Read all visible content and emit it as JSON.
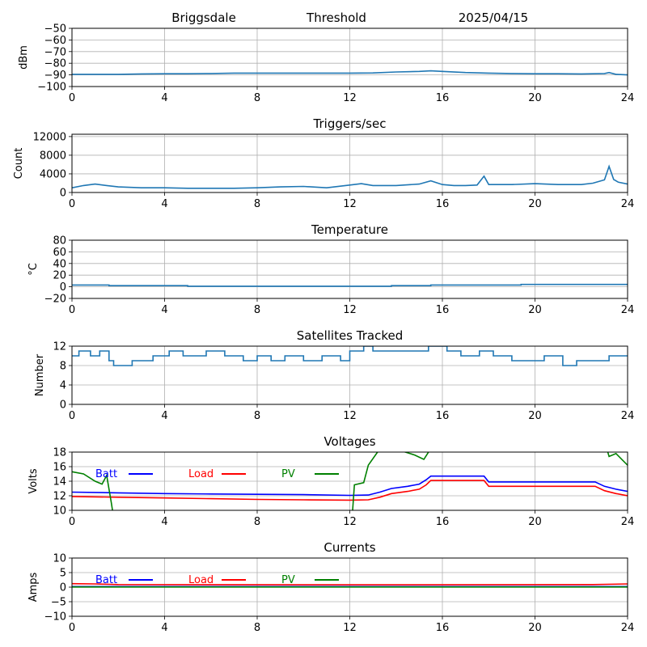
{
  "header": {
    "station": "Briggsdale",
    "label": "Threshold",
    "date": "2025/04/15"
  },
  "chart_data": [
    {
      "type": "line",
      "title": "",
      "ylabel": "dBm",
      "xlim": [
        0,
        24
      ],
      "ylim": [
        -100,
        -50
      ],
      "xticks": [
        0,
        4,
        8,
        12,
        16,
        20,
        24
      ],
      "yticks": [
        -100,
        -90,
        -80,
        -70,
        -60,
        -50
      ],
      "grid": true,
      "series": [
        {
          "color": "#1f77b4",
          "x": [
            0,
            1,
            2,
            3,
            4,
            5,
            6,
            7,
            8,
            9,
            10,
            11,
            12,
            13,
            14,
            15,
            15.5,
            16,
            17,
            18,
            19,
            20,
            21,
            22,
            22.5,
            23,
            23.2,
            23.5,
            24
          ],
          "y": [
            -89.5,
            -89.5,
            -89.5,
            -89.2,
            -89,
            -89,
            -88.8,
            -88.5,
            -88.5,
            -88.5,
            -88.5,
            -88.5,
            -88.5,
            -88.3,
            -87.5,
            -87,
            -86.5,
            -87,
            -88,
            -88.5,
            -88.8,
            -89,
            -89,
            -89.2,
            -89,
            -88.8,
            -88,
            -89.5,
            -90
          ]
        }
      ]
    },
    {
      "type": "line",
      "title": "Triggers/sec",
      "ylabel": "Count",
      "xlim": [
        0,
        24
      ],
      "ylim": [
        0,
        12500
      ],
      "xticks": [
        0,
        4,
        8,
        12,
        16,
        20,
        24
      ],
      "yticks": [
        0,
        4000,
        8000,
        12000
      ],
      "grid": true,
      "series": [
        {
          "color": "#1f77b4",
          "x": [
            0,
            0.5,
            1,
            1.5,
            2,
            3,
            4,
            5,
            6,
            7,
            8,
            9,
            10,
            11,
            12,
            12.5,
            13,
            14,
            15,
            15.5,
            16,
            16.5,
            17,
            17.5,
            17.8,
            18,
            19,
            20,
            21,
            22,
            22.5,
            23,
            23.2,
            23.4,
            23.6,
            24
          ],
          "y": [
            1000,
            1500,
            1800,
            1500,
            1200,
            1000,
            1000,
            900,
            900,
            900,
            1000,
            1200,
            1300,
            1000,
            1600,
            1900,
            1500,
            1500,
            1800,
            2500,
            1700,
            1500,
            1500,
            1600,
            3500,
            1700,
            1700,
            1900,
            1700,
            1700,
            2000,
            2700,
            5600,
            2800,
            2200,
            1800
          ]
        }
      ]
    },
    {
      "type": "line",
      "title": "Temperature",
      "ylabel": "°C",
      "xlim": [
        0,
        24
      ],
      "ylim": [
        -20,
        80
      ],
      "xticks": [
        0,
        4,
        8,
        12,
        16,
        20,
        24
      ],
      "yticks": [
        -20,
        0,
        20,
        40,
        60,
        80
      ],
      "grid": true,
      "series": [
        {
          "color": "#1f77b4",
          "x": [
            0,
            1.6,
            1.6,
            5,
            5,
            13.8,
            13.8,
            15.5,
            15.5,
            19.4,
            19.4,
            24
          ],
          "y": [
            3,
            3,
            2,
            2,
            1,
            1,
            2,
            2,
            3,
            3,
            4,
            4
          ]
        }
      ]
    },
    {
      "type": "line",
      "title": "Satellites Tracked",
      "ylabel": "Number",
      "xlim": [
        0,
        24
      ],
      "ylim": [
        0,
        12
      ],
      "xticks": [
        0,
        4,
        8,
        12,
        16,
        20,
        24
      ],
      "yticks": [
        0,
        4,
        8,
        12
      ],
      "grid": true,
      "series": [
        {
          "color": "#1f77b4",
          "x": [
            0,
            0.3,
            0.3,
            0.8,
            0.8,
            1.2,
            1.2,
            1.6,
            1.6,
            1.8,
            1.8,
            2.6,
            2.6,
            3.5,
            3.5,
            4.2,
            4.2,
            4.8,
            4.8,
            5.8,
            5.8,
            6.6,
            6.6,
            7.4,
            7.4,
            8,
            8,
            8.6,
            8.6,
            9.2,
            9.2,
            10,
            10,
            10.8,
            10.8,
            11.6,
            11.6,
            12,
            12,
            12.6,
            12.6,
            13,
            13,
            14,
            14,
            15.4,
            15.4,
            16.2,
            16.2,
            16.8,
            16.8,
            17.6,
            17.6,
            18.2,
            18.2,
            19,
            19,
            20.4,
            20.4,
            21.2,
            21.2,
            21.8,
            21.8,
            23.2,
            23.2,
            24
          ],
          "y": [
            10,
            10,
            11,
            11,
            10,
            10,
            11,
            11,
            9,
            9,
            8,
            8,
            9,
            9,
            10,
            10,
            11,
            11,
            10,
            10,
            11,
            11,
            10,
            10,
            9,
            9,
            10,
            10,
            9,
            9,
            10,
            10,
            9,
            9,
            10,
            10,
            9,
            9,
            11,
            11,
            12,
            12,
            11,
            11,
            11,
            11,
            12,
            12,
            11,
            11,
            10,
            10,
            11,
            11,
            10,
            10,
            9,
            9,
            10,
            10,
            8,
            8,
            9,
            9,
            10,
            10
          ]
        }
      ]
    },
    {
      "type": "line",
      "title": "Voltages",
      "ylabel": "Volts",
      "xlim": [
        0,
        24
      ],
      "ylim": [
        10,
        18
      ],
      "xticks": [
        0,
        4,
        8,
        12,
        16,
        20,
        24
      ],
      "yticks": [
        10,
        12,
        14,
        16,
        18
      ],
      "grid": true,
      "legend": "top-left",
      "series": [
        {
          "name": "Batt",
          "color": "#0000ff",
          "x": [
            0,
            2,
            4,
            6,
            8,
            10,
            12,
            12.8,
            13.3,
            13.8,
            14.5,
            15,
            15.3,
            15.5,
            17,
            17.8,
            18,
            20,
            22,
            22.6,
            23,
            23.5,
            24
          ],
          "y": [
            12.5,
            12.4,
            12.3,
            12.25,
            12.2,
            12.15,
            12.05,
            12.1,
            12.5,
            13,
            13.3,
            13.6,
            14.2,
            14.7,
            14.7,
            14.7,
            13.9,
            13.9,
            13.9,
            13.9,
            13.3,
            12.9,
            12.6
          ]
        },
        {
          "name": "Load",
          "color": "#ff0000",
          "x": [
            0,
            2,
            4,
            6,
            8,
            10,
            12,
            12.8,
            13.3,
            13.8,
            14.5,
            15,
            15.3,
            15.5,
            17,
            17.8,
            18,
            20,
            22,
            22.6,
            23,
            23.5,
            24
          ],
          "y": [
            11.9,
            11.8,
            11.7,
            11.6,
            11.5,
            11.45,
            11.4,
            11.45,
            11.8,
            12.3,
            12.6,
            12.9,
            13.5,
            14.1,
            14.1,
            14.1,
            13.3,
            13.3,
            13.3,
            13.3,
            12.7,
            12.3,
            12
          ]
        },
        {
          "name": "PV",
          "color": "#008000",
          "x": [
            0,
            0.5,
            1,
            1.3,
            1.5,
            1.7,
            1.8,
            12.1,
            12.2,
            12.6,
            12.8,
            13.2,
            13.6,
            14,
            14.4,
            14.8,
            15.2,
            15.5,
            23.1,
            23.2,
            23.5,
            24
          ],
          "y": [
            15.3,
            15,
            14,
            13.6,
            14.8,
            11,
            9,
            9,
            13.5,
            13.8,
            16.2,
            18,
            18.6,
            18.3,
            18,
            17.6,
            17,
            18.5,
            18.5,
            17.4,
            17.8,
            16.2
          ]
        }
      ]
    },
    {
      "type": "line",
      "title": "Currents",
      "ylabel": "Amps",
      "xlim": [
        0,
        24
      ],
      "ylim": [
        -10,
        10
      ],
      "xticks": [
        0,
        4,
        8,
        12,
        16,
        20,
        24
      ],
      "yticks": [
        -10,
        -5,
        0,
        5,
        10
      ],
      "grid": true,
      "legend": "top-left",
      "series": [
        {
          "name": "Batt",
          "color": "#0000ff",
          "x": [
            0,
            24
          ],
          "y": [
            0.2,
            0.2
          ]
        },
        {
          "name": "Load",
          "color": "#ff0000",
          "x": [
            0,
            1,
            2,
            12,
            22.5,
            24
          ],
          "y": [
            1.2,
            1.1,
            0.9,
            0.8,
            0.9,
            1.1
          ]
        },
        {
          "name": "PV",
          "color": "#008000",
          "x": [
            0,
            24
          ],
          "y": [
            0.05,
            0.05
          ]
        }
      ]
    }
  ]
}
